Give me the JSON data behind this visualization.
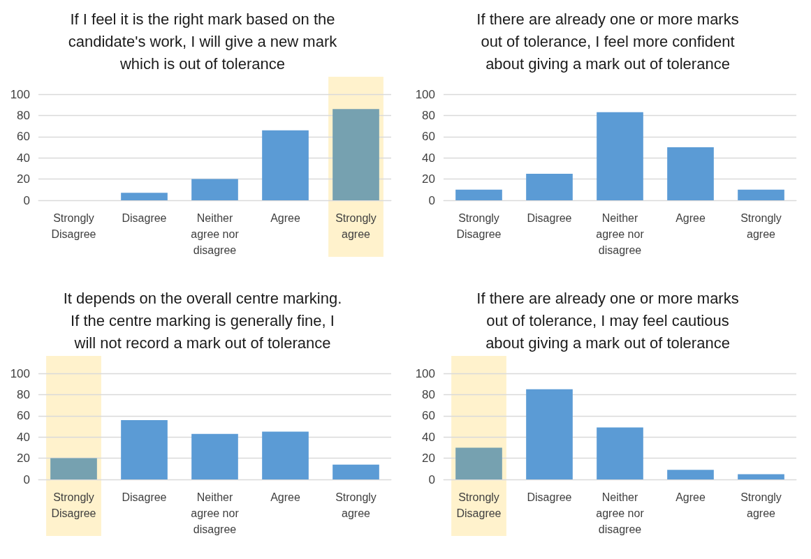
{
  "chart_data": [
    {
      "type": "bar",
      "title": "If I feel it is the right mark based on the\ncandidate's work, I will give a new mark\nwhich is out of tolerance",
      "categories": [
        "Strongly\nDisagree",
        "Disagree",
        "Neither\nagree nor\ndisagree",
        "Agree",
        "Strongly\nagree"
      ],
      "values": [
        0,
        7,
        20,
        66,
        86
      ],
      "colors": [
        "#5b9bd5",
        "#5b9bd5",
        "#5b9bd5",
        "#5b9bd5",
        "#76a1b0"
      ],
      "ylim": [
        0,
        100
      ],
      "yticks": [
        0,
        20,
        40,
        60,
        80,
        100
      ],
      "grid": "y",
      "bands": [
        {
          "axis": "x",
          "from": "Strongly\nagree",
          "to": "Strongly\nagree",
          "color": "#fff2cc"
        }
      ]
    },
    {
      "type": "bar",
      "title": "If there are already one or more marks\nout of tolerance, I feel more confident\nabout giving a mark out of tolerance",
      "categories": [
        "Strongly\nDisagree",
        "Disagree",
        "Neither\nagree nor\ndisagree",
        "Agree",
        "Strongly\nagree"
      ],
      "values": [
        10,
        25,
        83,
        50,
        10
      ],
      "colors": [
        "#5b9bd5",
        "#5b9bd5",
        "#5b9bd5",
        "#5b9bd5",
        "#5b9bd5"
      ],
      "ylim": [
        0,
        100
      ],
      "yticks": [
        0,
        20,
        40,
        60,
        80,
        100
      ],
      "grid": "y"
    },
    {
      "type": "bar",
      "title": "It depends on the overall centre marking.\nIf the centre marking is generally fine, I\nwill not record a mark out of tolerance",
      "categories": [
        "Strongly\nDisagree",
        "Disagree",
        "Neither\nagree nor\ndisagree",
        "Agree",
        "Strongly\nagree"
      ],
      "values": [
        20,
        56,
        43,
        45,
        14
      ],
      "colors": [
        "#76a1b0",
        "#5b9bd5",
        "#5b9bd5",
        "#5b9bd5",
        "#5b9bd5"
      ],
      "ylim": [
        0,
        100
      ],
      "yticks": [
        0,
        20,
        40,
        60,
        80,
        100
      ],
      "grid": "y",
      "bands": [
        {
          "axis": "x",
          "from": "Strongly\nDisagree",
          "to": "Strongly\nDisagree",
          "color": "#fff2cc"
        }
      ]
    },
    {
      "type": "bar",
      "title": "If there are already one or more marks\nout of tolerance, I may feel cautious\nabout giving a mark out of tolerance",
      "categories": [
        "Strongly\nDisagree",
        "Disagree",
        "Neither\nagree nor\ndisagree",
        "Agree",
        "Strongly\nagree"
      ],
      "values": [
        30,
        85,
        49,
        9,
        5
      ],
      "colors": [
        "#76a1b0",
        "#5b9bd5",
        "#5b9bd5",
        "#5b9bd5",
        "#5b9bd5"
      ],
      "ylim": [
        0,
        100
      ],
      "yticks": [
        0,
        20,
        40,
        60,
        80,
        100
      ],
      "grid": "y",
      "bands": [
        {
          "axis": "x",
          "from": "Strongly\nDisagree",
          "to": "Strongly\nDisagree",
          "color": "#fff2cc"
        }
      ]
    }
  ]
}
